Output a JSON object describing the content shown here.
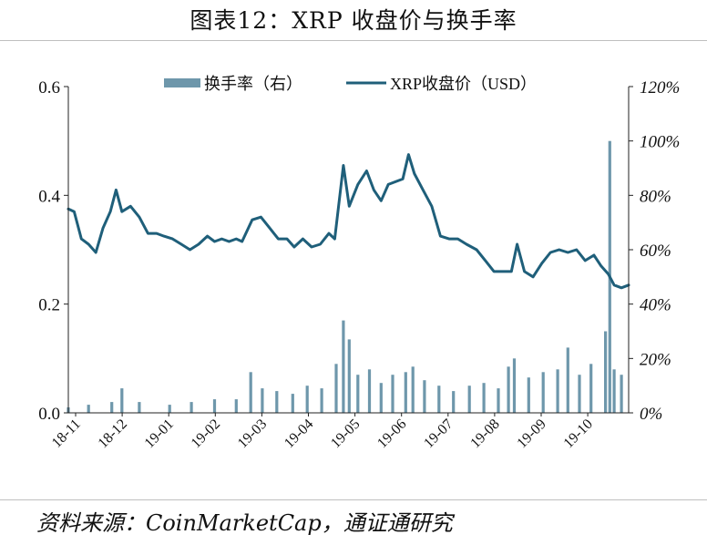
{
  "title": "图表12：XRP 收盘价与换手率",
  "source": "资料来源：CoinMarketCap，通证通研究",
  "colors": {
    "price_line": "#1f5f7a",
    "turnover_bar": "#6e97ab",
    "axis": "#222222",
    "rule": "#bfbfbf"
  },
  "chart_data": {
    "type": "bar+line",
    "legend_position": "top-center",
    "grid": false,
    "x_tick_labels": [
      "18-11",
      "18-12",
      "19-01",
      "19-02",
      "19-03",
      "19-04",
      "19-05",
      "19-06",
      "19-07",
      "19-08",
      "19-09",
      "19-10"
    ],
    "y_left": {
      "range": [
        0,
        0.6
      ],
      "ticks": [
        0.0,
        0.2,
        0.4,
        0.6
      ],
      "tick_labels": [
        "0.0",
        "0.2",
        "0.4",
        "0.6"
      ]
    },
    "y_right": {
      "range": [
        0,
        120
      ],
      "ticks": [
        0,
        20,
        40,
        60,
        80,
        100,
        120
      ],
      "tick_labels": [
        "0%",
        "20%",
        "40%",
        "60%",
        "80%",
        "100%",
        "120%"
      ]
    },
    "series": [
      {
        "name": "换手率（右）",
        "type": "bar",
        "axis": "right",
        "unit": "%",
        "points": [
          [
            "2018-11-01",
            2
          ],
          [
            "2018-11-15",
            3
          ],
          [
            "2018-12-01",
            4
          ],
          [
            "2018-12-08",
            9
          ],
          [
            "2018-12-20",
            4
          ],
          [
            "2019-01-10",
            3
          ],
          [
            "2019-01-25",
            4
          ],
          [
            "2019-02-10",
            5
          ],
          [
            "2019-02-25",
            5
          ],
          [
            "2019-03-07",
            15
          ],
          [
            "2019-03-15",
            9
          ],
          [
            "2019-03-25",
            8
          ],
          [
            "2019-04-05",
            7
          ],
          [
            "2019-04-15",
            10
          ],
          [
            "2019-04-25",
            9
          ],
          [
            "2019-05-05",
            18
          ],
          [
            "2019-05-10",
            34
          ],
          [
            "2019-05-14",
            27
          ],
          [
            "2019-05-20",
            14
          ],
          [
            "2019-05-28",
            16
          ],
          [
            "2019-06-05",
            11
          ],
          [
            "2019-06-13",
            14
          ],
          [
            "2019-06-22",
            15
          ],
          [
            "2019-06-27",
            17
          ],
          [
            "2019-07-05",
            12
          ],
          [
            "2019-07-15",
            10
          ],
          [
            "2019-07-25",
            8
          ],
          [
            "2019-08-05",
            10
          ],
          [
            "2019-08-15",
            11
          ],
          [
            "2019-08-25",
            9
          ],
          [
            "2019-09-01",
            17
          ],
          [
            "2019-09-05",
            20
          ],
          [
            "2019-09-15",
            13
          ],
          [
            "2019-09-25",
            15
          ],
          [
            "2019-10-05",
            16
          ],
          [
            "2019-10-12",
            24
          ],
          [
            "2019-10-20",
            14
          ],
          [
            "2019-10-28",
            18
          ],
          [
            "2019-11-07",
            30
          ],
          [
            "2019-11-10",
            100
          ],
          [
            "2019-11-13",
            16
          ],
          [
            "2019-11-18",
            14
          ]
        ]
      },
      {
        "name": "XRP收盘价（USD）",
        "type": "line",
        "axis": "left",
        "unit": "USD",
        "points": [
          [
            "2018-11-01",
            0.375
          ],
          [
            "2018-11-05",
            0.37
          ],
          [
            "2018-11-10",
            0.32
          ],
          [
            "2018-11-15",
            0.31
          ],
          [
            "2018-11-20",
            0.295
          ],
          [
            "2018-11-25",
            0.34
          ],
          [
            "2018-11-30",
            0.37
          ],
          [
            "2018-12-04",
            0.41
          ],
          [
            "2018-12-08",
            0.37
          ],
          [
            "2018-12-14",
            0.38
          ],
          [
            "2018-12-20",
            0.36
          ],
          [
            "2018-12-26",
            0.33
          ],
          [
            "2019-01-01",
            0.33
          ],
          [
            "2019-01-06",
            0.325
          ],
          [
            "2019-01-12",
            0.32
          ],
          [
            "2019-01-18",
            0.31
          ],
          [
            "2019-01-24",
            0.3
          ],
          [
            "2019-01-30",
            0.31
          ],
          [
            "2019-02-05",
            0.325
          ],
          [
            "2019-02-10",
            0.315
          ],
          [
            "2019-02-15",
            0.32
          ],
          [
            "2019-02-20",
            0.315
          ],
          [
            "2019-02-25",
            0.32
          ],
          [
            "2019-03-01",
            0.315
          ],
          [
            "2019-03-08",
            0.355
          ],
          [
            "2019-03-14",
            0.36
          ],
          [
            "2019-03-20",
            0.34
          ],
          [
            "2019-03-26",
            0.32
          ],
          [
            "2019-04-01",
            0.32
          ],
          [
            "2019-04-06",
            0.305
          ],
          [
            "2019-04-12",
            0.32
          ],
          [
            "2019-04-18",
            0.305
          ],
          [
            "2019-04-24",
            0.31
          ],
          [
            "2019-04-30",
            0.33
          ],
          [
            "2019-05-04",
            0.32
          ],
          [
            "2019-05-10",
            0.455
          ],
          [
            "2019-05-14",
            0.38
          ],
          [
            "2019-05-20",
            0.42
          ],
          [
            "2019-05-26",
            0.445
          ],
          [
            "2019-05-31",
            0.41
          ],
          [
            "2019-06-05",
            0.39
          ],
          [
            "2019-06-10",
            0.42
          ],
          [
            "2019-06-15",
            0.425
          ],
          [
            "2019-06-20",
            0.43
          ],
          [
            "2019-06-24",
            0.475
          ],
          [
            "2019-06-28",
            0.44
          ],
          [
            "2019-07-04",
            0.41
          ],
          [
            "2019-07-10",
            0.38
          ],
          [
            "2019-07-16",
            0.325
          ],
          [
            "2019-07-22",
            0.32
          ],
          [
            "2019-07-28",
            0.32
          ],
          [
            "2019-08-03",
            0.31
          ],
          [
            "2019-08-10",
            0.3
          ],
          [
            "2019-08-16",
            0.28
          ],
          [
            "2019-08-22",
            0.26
          ],
          [
            "2019-08-28",
            0.26
          ],
          [
            "2019-09-03",
            0.26
          ],
          [
            "2019-09-07",
            0.31
          ],
          [
            "2019-09-12",
            0.26
          ],
          [
            "2019-09-18",
            0.25
          ],
          [
            "2019-09-24",
            0.275
          ],
          [
            "2019-09-30",
            0.295
          ],
          [
            "2019-10-06",
            0.3
          ],
          [
            "2019-10-12",
            0.295
          ],
          [
            "2019-10-18",
            0.3
          ],
          [
            "2019-10-24",
            0.28
          ],
          [
            "2019-10-30",
            0.29
          ],
          [
            "2019-11-04",
            0.27
          ],
          [
            "2019-11-09",
            0.255
          ],
          [
            "2019-11-13",
            0.235
          ],
          [
            "2019-11-18",
            0.23
          ],
          [
            "2019-11-23",
            0.235
          ]
        ]
      }
    ]
  }
}
